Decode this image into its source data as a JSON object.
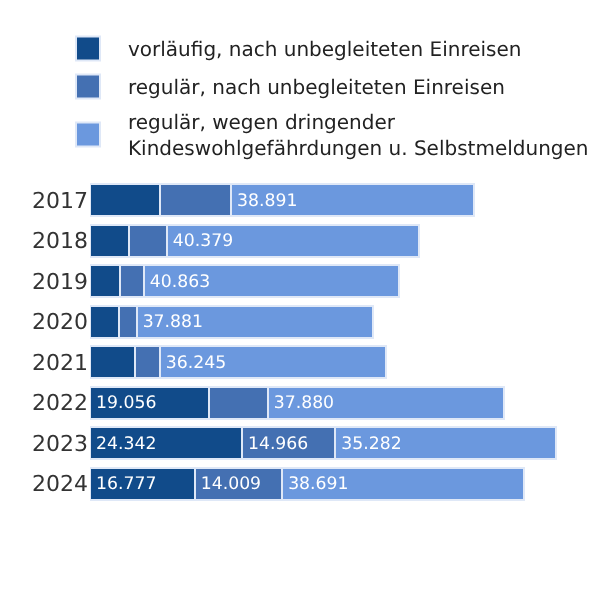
{
  "chart_data": {
    "type": "bar",
    "orientation": "horizontal",
    "stacked": true,
    "legend": "top left",
    "categories": [
      "2017",
      "2018",
      "2019",
      "2020",
      "2021",
      "2022",
      "2023",
      "2024"
    ],
    "series": [
      {
        "name": "vorläufig, nach unbegleiteten Einreisen",
        "color": "#114b8a",
        "values": [
          11190,
          6310,
          4880,
          4570,
          7150,
          19056,
          24342,
          16777
        ],
        "value_labels": [
          null,
          null,
          null,
          null,
          null,
          "19.056",
          "24.342",
          "16.777"
        ]
      },
      {
        "name": "regulär, nach unbegleiteten Einreisen",
        "color": "#4470b2",
        "values": [
          11400,
          6000,
          3730,
          2900,
          4040,
          9420,
          14966,
          14009
        ],
        "value_labels": [
          null,
          null,
          null,
          null,
          null,
          null,
          "14.966",
          "14.009"
        ]
      },
      {
        "name": "regulär, wegen dringender Kindeswohlgefährdungen u. Selbstmeldungen",
        "color": "#6b98de",
        "values": [
          38891,
          40379,
          40863,
          37881,
          36245,
          37880,
          35282,
          38691
        ],
        "value_labels": [
          "38.891",
          "40.379",
          "40.863",
          "37.881",
          "36.245",
          "37.880",
          "35.282",
          "38.691"
        ]
      }
    ]
  }
}
